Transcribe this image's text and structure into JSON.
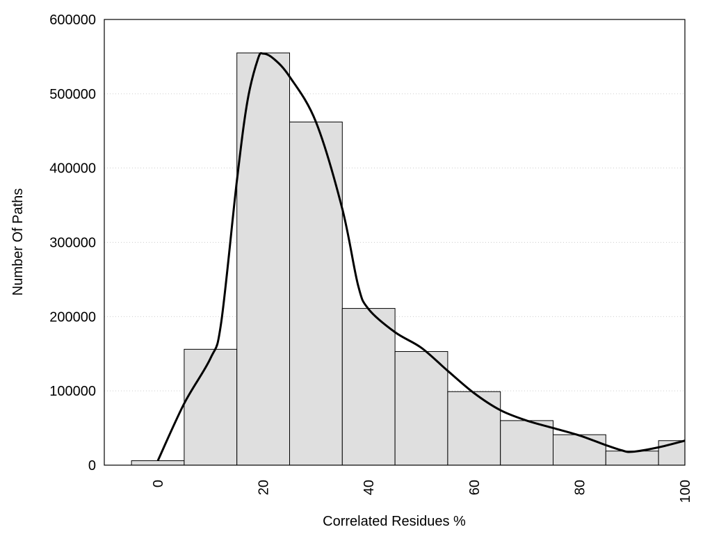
{
  "chart_data": {
    "type": "bar",
    "title": "",
    "xlabel": "Correlated Residues %",
    "ylabel": "Number Of Paths",
    "xlim": [
      -10,
      100
    ],
    "ylim": [
      0,
      600000
    ],
    "grid": "horizontal dotted",
    "bin_width": 10,
    "x_ticks": [
      "0",
      "20",
      "40",
      "60",
      "80",
      "100"
    ],
    "x_tick_values": [
      0,
      20,
      40,
      60,
      80,
      100
    ],
    "y_ticks": [
      "0",
      "100000",
      "200000",
      "300000",
      "400000",
      "500000",
      "600000"
    ],
    "y_tick_values": [
      0,
      100000,
      200000,
      300000,
      400000,
      500000,
      600000
    ],
    "bar_fill": "#dfdfdf",
    "bars": {
      "x": [
        0,
        10,
        20,
        30,
        40,
        50,
        60,
        70,
        80,
        90,
        100
      ],
      "values": [
        6000,
        156000,
        555000,
        462000,
        211000,
        153000,
        99000,
        60000,
        41000,
        19000,
        33000
      ]
    },
    "density_curve": {
      "x": [
        0,
        5,
        10,
        12,
        15,
        17,
        19,
        20,
        22,
        25,
        30,
        35,
        38,
        40,
        45,
        50,
        55,
        60,
        65,
        70,
        75,
        80,
        85,
        88,
        90,
        95,
        100
      ],
      "y": [
        6000,
        83000,
        144000,
        191000,
        383000,
        490000,
        547000,
        554000,
        547000,
        523000,
        462000,
        345000,
        242000,
        210000,
        179000,
        158000,
        127000,
        97000,
        74000,
        60000,
        50000,
        40000,
        27000,
        20000,
        18000,
        24000,
        33000
      ]
    }
  }
}
